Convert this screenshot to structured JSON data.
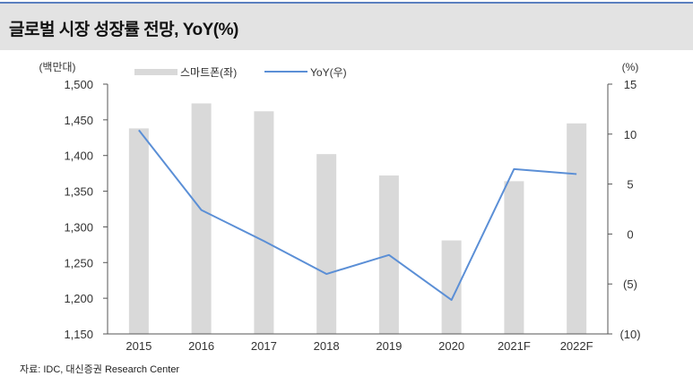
{
  "title": "글로벌 시장 성장률 전망, YoY(%)",
  "source": "자료: IDC, 대신증권 Research Center",
  "chart_data": {
    "type": "bar+line",
    "categories": [
      "2015",
      "2016",
      "2017",
      "2018",
      "2019",
      "2020",
      "2021F",
      "2022F"
    ],
    "series": [
      {
        "name": "스마트폰(좌)",
        "type": "bar",
        "axis": "left",
        "color": "#d9d9d9",
        "values": [
          1438,
          1473,
          1462,
          1402,
          1372,
          1281,
          1364,
          1445
        ]
      },
      {
        "name": "YoY(우)",
        "type": "line",
        "axis": "right",
        "color": "#5b8fd6",
        "values": [
          10.4,
          2.4,
          -0.7,
          -4.0,
          -2.1,
          -6.6,
          6.5,
          6.0
        ]
      }
    ],
    "y_left": {
      "unit_label": "(백만대)",
      "min": 1150,
      "max": 1500,
      "ticks": [
        1500,
        1450,
        1400,
        1350,
        1300,
        1250,
        1200,
        1150
      ],
      "tick_labels": [
        "1,500",
        "1,450",
        "1,400",
        "1,350",
        "1,300",
        "1,250",
        "1,200",
        "1,150"
      ]
    },
    "y_right": {
      "unit_label": "(%)",
      "min": -10,
      "max": 15,
      "ticks": [
        15,
        10,
        5,
        0,
        -5,
        -10
      ],
      "tick_labels": [
        "15",
        "10",
        "5",
        "0",
        "(5)",
        "(10)"
      ]
    },
    "legend_position": "top-left",
    "grid": false
  }
}
